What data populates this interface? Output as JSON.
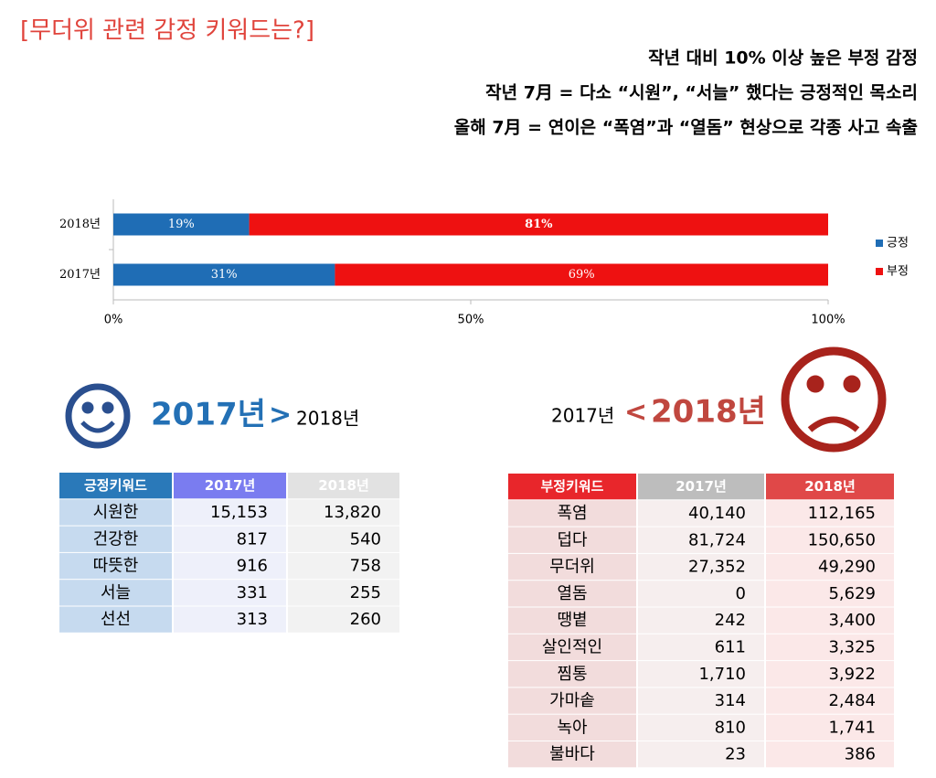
{
  "header": {
    "title": "[무더위 관련 감정 키워드는?]",
    "lines": [
      "작년 대비 10% 이상 높은 부정 감정",
      "작년 7月 = 다소 “시원”, “서늘” 했다는 긍정적인 목소리",
      "올해 7月 = 연이은 “폭염”과 “열돔” 현상으로 각종 사고 속출"
    ]
  },
  "chart_data": {
    "type": "bar",
    "orientation": "horizontal",
    "stacked": true,
    "categories": [
      "2018년",
      "2017년"
    ],
    "series": [
      {
        "name": "긍정",
        "color": "#1f6db5",
        "values": [
          19,
          31
        ],
        "value_labels": [
          "19%",
          "31%"
        ]
      },
      {
        "name": "부정",
        "color": "#ee1111",
        "values": [
          81,
          69
        ],
        "value_labels": [
          "81%",
          "69%"
        ]
      }
    ],
    "xlim": [
      0,
      100
    ],
    "xticks": [
      {
        "value": 0,
        "label": "0%"
      },
      {
        "value": 50,
        "label": "50%"
      },
      {
        "value": 100,
        "label": "100%"
      }
    ],
    "legend": "right"
  },
  "positive": {
    "compare": [
      "2017년",
      ">",
      "2018년"
    ],
    "table": {
      "header": [
        "긍정키워드",
        "2017년",
        "2018년"
      ],
      "rows": [
        [
          "시원한",
          "15,153",
          "13,820"
        ],
        [
          "건강한",
          "817",
          "540"
        ],
        [
          "따뜻한",
          "916",
          "758"
        ],
        [
          "서늘",
          "331",
          "255"
        ],
        [
          "선선",
          "313",
          "260"
        ]
      ]
    }
  },
  "negative": {
    "compare": [
      "2017년",
      "<",
      "2018년"
    ],
    "table": {
      "header": [
        "부정키워드",
        "2017년",
        "2018년"
      ],
      "rows": [
        [
          "폭염",
          "40,140",
          "112,165"
        ],
        [
          "덥다",
          "81,724",
          "150,650"
        ],
        [
          "무더위",
          "27,352",
          "49,290"
        ],
        [
          "열돔",
          "0",
          "5,629"
        ],
        [
          "땡볕",
          "242",
          "3,400"
        ],
        [
          "살인적인",
          "611",
          "3,325"
        ],
        [
          "찜통",
          "1,710",
          "3,922"
        ],
        [
          "가마솥",
          "314",
          "2,484"
        ],
        [
          "녹아",
          "810",
          "1,741"
        ],
        [
          "불바다",
          "23",
          "386"
        ]
      ]
    }
  }
}
